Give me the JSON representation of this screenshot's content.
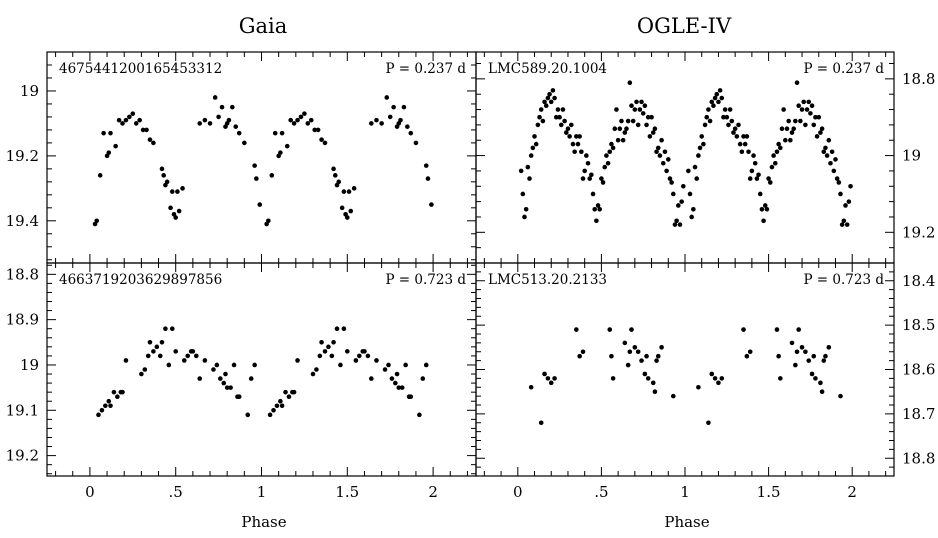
{
  "columns": [
    "Gaia",
    "OGLE-IV"
  ],
  "x_axis_label": "Phase",
  "chart_data": [
    {
      "type": "scatter",
      "column": "Gaia",
      "row": 0,
      "id_label": "4675441200165453312",
      "period_label": "P = 0.237 d",
      "xlabel": "Phase",
      "ylabel": "",
      "xlim": [
        -0.25,
        2.25
      ],
      "ylim": [
        19.53,
        18.88
      ],
      "y_inverted": true,
      "y_ticks": [
        19,
        19.2,
        19.4
      ],
      "y_tick_labels": [
        "19",
        "19.2",
        "19.4"
      ],
      "y_axis_side": "left",
      "x": [
        0.03,
        0.04,
        0.06,
        0.08,
        0.1,
        0.11,
        0.12,
        0.15,
        0.17,
        0.19,
        0.21,
        0.23,
        0.25,
        0.27,
        0.29,
        0.31,
        0.33,
        0.35,
        0.37,
        0.42,
        0.43,
        0.44,
        0.45,
        0.47,
        0.48,
        0.49,
        0.5,
        0.51,
        0.52,
        0.54,
        0.64,
        0.67,
        0.7,
        0.73,
        0.75,
        0.77,
        0.79,
        0.8,
        0.81,
        0.83,
        0.85,
        0.87,
        0.9,
        0.96,
        0.97,
        0.99
      ],
      "y": [
        19.41,
        19.4,
        19.26,
        19.13,
        19.2,
        19.19,
        19.13,
        19.17,
        19.09,
        19.1,
        19.09,
        19.08,
        19.07,
        19.1,
        19.09,
        19.12,
        19.12,
        19.15,
        19.16,
        19.24,
        19.26,
        19.29,
        19.28,
        19.36,
        19.31,
        19.38,
        19.39,
        19.31,
        19.37,
        19.3,
        19.1,
        19.09,
        19.1,
        19.02,
        19.08,
        19.05,
        19.11,
        19.1,
        19.09,
        19.05,
        19.11,
        19.13,
        19.16,
        19.23,
        19.27,
        19.35
      ]
    },
    {
      "type": "scatter",
      "column": "OGLE-IV",
      "row": 0,
      "id_label": "LMC589.20.1004",
      "period_label": "P = 0.237 d",
      "xlabel": "Phase",
      "ylabel": "",
      "xlim": [
        -0.25,
        2.25
      ],
      "ylim": [
        19.28,
        18.73
      ],
      "y_inverted": true,
      "y_ticks": [
        18.8,
        19,
        19.2
      ],
      "y_tick_labels": [
        "18.8",
        "19",
        "19.2"
      ],
      "y_axis_side": "right",
      "x": [
        0.02,
        0.03,
        0.04,
        0.05,
        0.06,
        0.07,
        0.08,
        0.09,
        0.1,
        0.11,
        0.12,
        0.13,
        0.14,
        0.15,
        0.16,
        0.17,
        0.18,
        0.19,
        0.2,
        0.21,
        0.22,
        0.23,
        0.24,
        0.25,
        0.26,
        0.27,
        0.28,
        0.29,
        0.3,
        0.31,
        0.32,
        0.33,
        0.34,
        0.35,
        0.36,
        0.37,
        0.38,
        0.39,
        0.4,
        0.41,
        0.42,
        0.43,
        0.44,
        0.45,
        0.46,
        0.47,
        0.48,
        0.49,
        0.5,
        0.51,
        0.52,
        0.53,
        0.54,
        0.55,
        0.56,
        0.57,
        0.58,
        0.59,
        0.6,
        0.61,
        0.62,
        0.63,
        0.64,
        0.65,
        0.66,
        0.67,
        0.68,
        0.69,
        0.7,
        0.71,
        0.72,
        0.73,
        0.74,
        0.75,
        0.76,
        0.77,
        0.78,
        0.79,
        0.8,
        0.81,
        0.82,
        0.83,
        0.84,
        0.85,
        0.86,
        0.87,
        0.88,
        0.89,
        0.9,
        0.91,
        0.92,
        0.93,
        0.94,
        0.95,
        0.96,
        0.97,
        0.98,
        0.99
      ],
      "y": [
        19.04,
        19.1,
        19.16,
        19.14,
        19.03,
        19.06,
        19.0,
        18.98,
        18.95,
        18.97,
        18.92,
        18.9,
        18.88,
        18.91,
        18.86,
        18.87,
        18.85,
        18.84,
        18.86,
        18.83,
        18.85,
        18.9,
        18.88,
        18.9,
        18.92,
        18.88,
        18.91,
        18.94,
        18.93,
        18.95,
        18.92,
        18.97,
        18.99,
        18.95,
        18.97,
        18.95,
        18.99,
        19.06,
        19.04,
        19.0,
        19.02,
        19.06,
        19.05,
        19.1,
        19.14,
        19.17,
        19.13,
        19.14,
        19.06,
        19.07,
        19.03,
        19.0,
        19.02,
        18.99,
        18.97,
        18.98,
        18.93,
        18.88,
        18.96,
        18.93,
        18.91,
        18.96,
        18.94,
        18.93,
        18.91,
        18.81,
        18.87,
        18.91,
        18.88,
        18.86,
        18.92,
        18.88,
        18.86,
        18.89,
        18.87,
        18.92,
        18.9,
        18.95,
        18.9,
        18.94,
        18.93,
        18.99,
        18.98,
        19.0,
        18.96,
        19.02,
        18.99,
        19.04,
        19.01,
        19.06,
        19.07,
        19.1,
        19.18,
        19.17,
        19.13,
        19.18,
        19.12,
        19.08
      ]
    },
    {
      "type": "scatter",
      "column": "Gaia",
      "row": 1,
      "id_label": "4663719203629897856",
      "period_label": "P = 0.723 d",
      "xlabel": "Phase",
      "ylabel": "",
      "xlim": [
        -0.25,
        2.25
      ],
      "ylim": [
        19.245,
        18.775
      ],
      "y_inverted": true,
      "y_ticks": [
        18.8,
        18.9,
        19,
        19.1,
        19.2
      ],
      "y_tick_labels": [
        "18.8",
        "18.9",
        "19",
        "19.1",
        "19.2"
      ],
      "y_axis_side": "left",
      "x": [
        0.05,
        0.07,
        0.09,
        0.11,
        0.12,
        0.14,
        0.16,
        0.18,
        0.19,
        0.21,
        0.3,
        0.32,
        0.34,
        0.35,
        0.37,
        0.39,
        0.41,
        0.42,
        0.44,
        0.46,
        0.48,
        0.5,
        0.55,
        0.57,
        0.59,
        0.6,
        0.62,
        0.64,
        0.67,
        0.72,
        0.74,
        0.76,
        0.78,
        0.79,
        0.8,
        0.82,
        0.84,
        0.86,
        0.87,
        0.92,
        0.94,
        0.96
      ],
      "y": [
        19.11,
        19.1,
        19.09,
        19.08,
        19.09,
        19.06,
        19.07,
        19.06,
        19.06,
        18.99,
        19.02,
        19.01,
        18.98,
        18.95,
        18.97,
        18.96,
        18.98,
        18.95,
        18.92,
        19.0,
        18.92,
        18.97,
        18.99,
        18.98,
        18.97,
        18.97,
        18.98,
        19.03,
        18.99,
        19.01,
        19.0,
        19.03,
        19.04,
        19.02,
        19.05,
        19.05,
        19.0,
        19.07,
        19.07,
        19.11,
        19.03,
        19.0
      ]
    },
    {
      "type": "scatter",
      "column": "OGLE-IV",
      "row": 1,
      "id_label": "LMC513.20.2133",
      "period_label": "P = 0.723 d",
      "xlabel": "Phase",
      "ylabel": "",
      "xlim": [
        -0.25,
        2.25
      ],
      "ylim": [
        18.84,
        18.36
      ],
      "y_inverted": true,
      "y_ticks": [
        18.4,
        18.5,
        18.6,
        18.7,
        18.8
      ],
      "y_tick_labels": [
        "18.4",
        "18.5",
        "18.6",
        "18.7",
        "18.8"
      ],
      "y_axis_side": "right",
      "x": [
        0.08,
        0.14,
        0.16,
        0.18,
        0.2,
        0.22,
        0.35,
        0.37,
        0.39,
        0.55,
        0.56,
        0.57,
        0.64,
        0.66,
        0.67,
        0.68,
        0.7,
        0.72,
        0.74,
        0.76,
        0.77,
        0.78,
        0.81,
        0.82,
        0.83,
        0.84,
        0.86,
        0.93
      ],
      "y": [
        18.64,
        18.72,
        18.61,
        18.62,
        18.63,
        18.62,
        18.51,
        18.57,
        18.56,
        18.51,
        18.57,
        18.62,
        18.54,
        18.59,
        18.56,
        18.51,
        18.55,
        18.56,
        18.58,
        18.61,
        18.57,
        18.62,
        18.63,
        18.65,
        18.58,
        18.57,
        18.55,
        18.66
      ]
    }
  ]
}
